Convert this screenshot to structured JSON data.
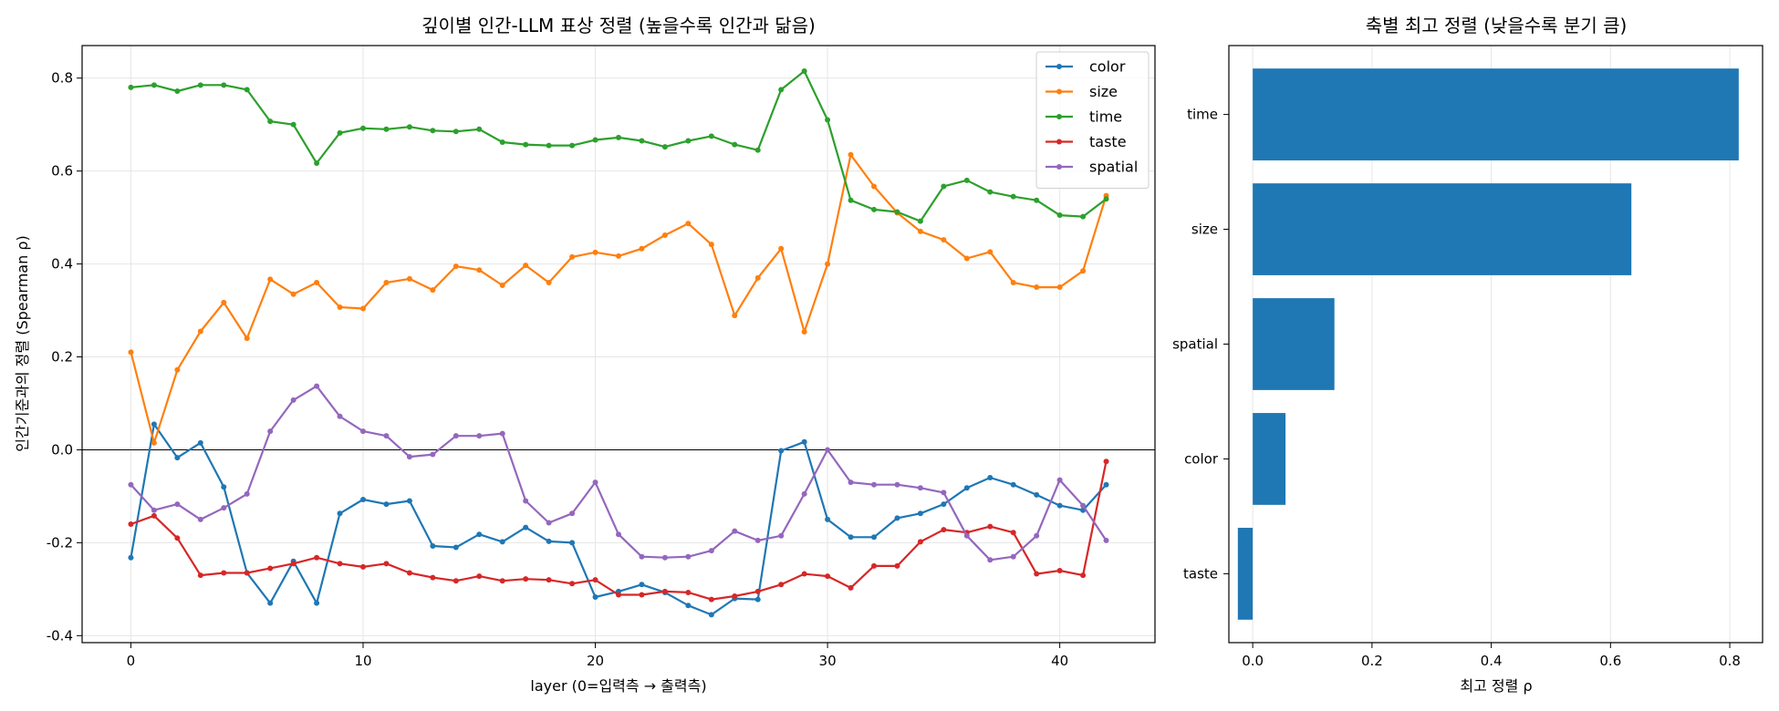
{
  "chart_data": [
    {
      "type": "line",
      "title": "깊이별 인간-LLM 표상 정렬 (높을수록 인간과 닮음)",
      "xlabel": "layer (0=입력측 → 출력측)",
      "ylabel": "인간기준과의 정렬 (Spearman ρ)",
      "xlim": [
        -2.1,
        44.1
      ],
      "ylim": [
        -0.415,
        0.87
      ],
      "xticks": [
        0,
        10,
        20,
        30,
        40
      ],
      "yticks": [
        -0.4,
        -0.2,
        0.0,
        0.2,
        0.4,
        0.6,
        0.8
      ],
      "xtick_labels": [
        "0",
        "10",
        "20",
        "30",
        "40"
      ],
      "ytick_labels": [
        "-0.4",
        "-0.2",
        "0.0",
        "0.2",
        "0.4",
        "0.6",
        "0.8"
      ],
      "grid": true,
      "zero_line": true,
      "legend_position": "top-right",
      "x": [
        0,
        1,
        2,
        3,
        4,
        5,
        6,
        7,
        8,
        9,
        10,
        11,
        12,
        13,
        14,
        15,
        16,
        17,
        18,
        19,
        20,
        21,
        22,
        23,
        24,
        25,
        26,
        27,
        28,
        29,
        30,
        31,
        32,
        33,
        34,
        35,
        36,
        37,
        38,
        39,
        40,
        41,
        42
      ],
      "series": [
        {
          "name": "color",
          "color": "#1f77b4",
          "values": [
            -0.232,
            0.055,
            -0.017,
            0.015,
            -0.08,
            -0.265,
            -0.33,
            -0.24,
            -0.33,
            -0.137,
            -0.107,
            -0.117,
            -0.11,
            -0.207,
            -0.21,
            -0.182,
            -0.198,
            -0.167,
            -0.197,
            -0.2,
            -0.317,
            -0.305,
            -0.29,
            -0.307,
            -0.335,
            -0.355,
            -0.32,
            -0.322,
            -0.002,
            0.017,
            -0.15,
            -0.188,
            -0.188,
            -0.147,
            -0.137,
            -0.117,
            -0.082,
            -0.06,
            -0.075,
            -0.097,
            -0.12,
            -0.13,
            -0.075
          ]
        },
        {
          "name": "size",
          "color": "#ff7f0e",
          "values": [
            0.21,
            0.015,
            0.172,
            0.255,
            0.317,
            0.24,
            0.367,
            0.335,
            0.36,
            0.307,
            0.304,
            0.36,
            0.368,
            0.344,
            0.395,
            0.387,
            0.354,
            0.397,
            0.36,
            0.415,
            0.425,
            0.417,
            0.433,
            0.462,
            0.487,
            0.442,
            0.289,
            0.37,
            0.433,
            0.254,
            0.4,
            0.635,
            0.567,
            0.51,
            0.47,
            0.452,
            0.412,
            0.426,
            0.36,
            0.35,
            0.35,
            0.385,
            0.547
          ]
        },
        {
          "name": "time",
          "color": "#2ca02c",
          "values": [
            0.78,
            0.785,
            0.772,
            0.785,
            0.785,
            0.775,
            0.707,
            0.7,
            0.617,
            0.682,
            0.692,
            0.69,
            0.695,
            0.687,
            0.685,
            0.69,
            0.662,
            0.657,
            0.655,
            0.655,
            0.667,
            0.672,
            0.665,
            0.652,
            0.665,
            0.675,
            0.657,
            0.645,
            0.775,
            0.815,
            0.71,
            0.537,
            0.517,
            0.512,
            0.492,
            0.567,
            0.58,
            0.555,
            0.545,
            0.537,
            0.505,
            0.502,
            0.54
          ]
        },
        {
          "name": "taste",
          "color": "#d62728",
          "values": [
            -0.16,
            -0.142,
            -0.19,
            -0.27,
            -0.265,
            -0.265,
            -0.255,
            -0.245,
            -0.232,
            -0.245,
            -0.252,
            -0.245,
            -0.265,
            -0.275,
            -0.282,
            -0.272,
            -0.282,
            -0.278,
            -0.28,
            -0.288,
            -0.28,
            -0.312,
            -0.312,
            -0.305,
            -0.307,
            -0.322,
            -0.315,
            -0.305,
            -0.29,
            -0.267,
            -0.272,
            -0.297,
            -0.25,
            -0.25,
            -0.198,
            -0.172,
            -0.178,
            -0.165,
            -0.178,
            -0.267,
            -0.26,
            -0.27,
            -0.025
          ]
        },
        {
          "name": "spatial",
          "color": "#9467bd",
          "values": [
            -0.075,
            -0.13,
            -0.117,
            -0.15,
            -0.125,
            -0.095,
            0.04,
            0.107,
            0.137,
            0.072,
            0.04,
            0.03,
            -0.015,
            -0.01,
            0.03,
            0.03,
            0.035,
            -0.11,
            -0.157,
            -0.137,
            -0.07,
            -0.182,
            -0.23,
            -0.232,
            -0.23,
            -0.217,
            -0.175,
            -0.195,
            -0.185,
            -0.095,
            0.0,
            -0.07,
            -0.075,
            -0.075,
            -0.082,
            -0.092,
            -0.185,
            -0.237,
            -0.23,
            -0.185,
            -0.065,
            -0.12,
            -0.195
          ]
        }
      ]
    },
    {
      "type": "bar",
      "orientation": "horizontal",
      "title": "축별 최고 정렬 (낮을수록 분기 큼)",
      "xlabel": "최고 정렬 ρ",
      "ylabel": "",
      "xlim": [
        -0.04,
        0.855
      ],
      "xticks": [
        0.0,
        0.2,
        0.4,
        0.6,
        0.8
      ],
      "xtick_labels": [
        "0.0",
        "0.2",
        "0.4",
        "0.6",
        "0.8"
      ],
      "grid": true,
      "bar_color": "#1f77b4",
      "categories": [
        "time",
        "size",
        "spatial",
        "color",
        "taste"
      ],
      "values": [
        0.815,
        0.635,
        0.137,
        0.055,
        -0.025
      ]
    }
  ]
}
